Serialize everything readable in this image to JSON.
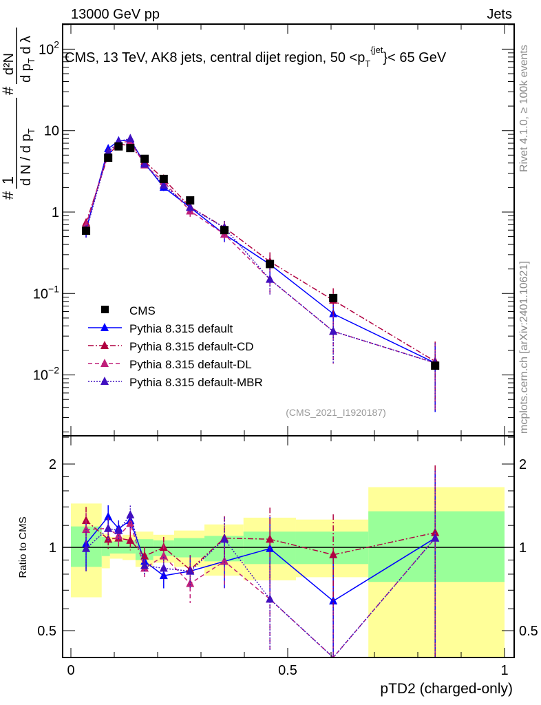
{
  "header": {
    "left": "13000 GeV pp",
    "right": "Jets"
  },
  "side_labels": {
    "rivet": "Rivet 4.1.0, ≥ 100k events",
    "mcplots": "mcplots.cern.ch [arXiv:2401.10621]"
  },
  "analysis_id": "(CMS_2021_I1920187)",
  "chart_data": {
    "type": "scatter",
    "title": {
      "main": "CMS, 13 TeV, AK8 jets, central dijet region, 50 <p",
      "sub": "T",
      "sup": "{jet",
      "tail": "}< 65 GeV"
    },
    "xlabel": "pTD2 (charged-only)",
    "ylabel": {
      "hash1": "#",
      "num1": "1",
      "den1": "d N / d p",
      "den1_sub": "T",
      "hash2": "#",
      "num2": "d²N",
      "den2": "d p",
      "den2_sub": "T",
      "den2_tail": " d λ"
    },
    "ratio_ylabel": "Ratio to CMS",
    "xlim": [
      -0.02,
      1.02
    ],
    "ylim_main": [
      0.0015,
      200
    ],
    "ylim_ratio": [
      0.4,
      2.53
    ],
    "yscale_main": "log",
    "x_ticks": [
      {
        "v": 0,
        "label": "0"
      },
      {
        "v": 0.5,
        "label": "0.5"
      },
      {
        "v": 1,
        "label": "1"
      }
    ],
    "y_ticks_main": [
      {
        "v": 100,
        "base": "10",
        "exp": "2"
      },
      {
        "v": 10,
        "base": "10",
        "exp": ""
      },
      {
        "v": 1,
        "base": "1",
        "exp": ""
      },
      {
        "v": 0.1,
        "base": "10",
        "exp": "−1"
      },
      {
        "v": 0.01,
        "base": "10",
        "exp": "−2"
      }
    ],
    "y_ticks_ratio": [
      {
        "v": 2,
        "label": "2"
      },
      {
        "v": 1,
        "label": "1"
      },
      {
        "v": 0.5,
        "label": "0.5"
      }
    ],
    "x": [
      0.035,
      0.086,
      0.11,
      0.137,
      0.17,
      0.214,
      0.275,
      0.354,
      0.459,
      0.605,
      0.84
    ],
    "bin_edges": [
      0,
      0.071,
      0.09,
      0.119,
      0.149,
      0.19,
      0.238,
      0.308,
      0.398,
      0.519,
      0.686,
      1.0
    ],
    "data": {
      "name": "CMS",
      "values": [
        0.59,
        4.65,
        6.4,
        6.1,
        4.5,
        2.55,
        1.39,
        0.6,
        0.23,
        0.088,
        0.013
      ],
      "color": "#000000"
    },
    "band_1sigma": {
      "color": "#99ff99",
      "lo": [
        0.85,
        0.93,
        0.95,
        0.95,
        0.9,
        0.93,
        0.92,
        0.89,
        0.87,
        0.87,
        0.75
      ],
      "hi": [
        1.19,
        1.09,
        1.05,
        1.06,
        1.07,
        1.06,
        1.08,
        1.1,
        1.14,
        1.14,
        1.35
      ]
    },
    "band_2sigma": {
      "color": "#ffff99",
      "lo": [
        0.66,
        0.84,
        0.91,
        0.9,
        0.85,
        0.88,
        0.85,
        0.79,
        0.76,
        0.78,
        0.37
      ],
      "hi": [
        1.44,
        1.12,
        1.09,
        1.11,
        1.14,
        1.11,
        1.15,
        1.21,
        1.28,
        1.26,
        1.65
      ]
    },
    "series": [
      {
        "name": "Pythia 8.315 default",
        "color": "#0000ff",
        "style": "solid",
        "ratio": [
          1.03,
          1.29,
          1.17,
          1.25,
          0.89,
          0.79,
          0.82,
          0.89,
          0.99,
          0.64,
          1.08
        ],
        "rel_err": [
          0.2,
          0.1,
          0.07,
          0.08,
          0.08,
          0.1,
          0.12,
          0.2,
          0.3,
          0.5,
          0.75
        ]
      },
      {
        "name": "Pythia 8.315 default-CD",
        "color": "#b00040",
        "style": "dashdot",
        "ratio": [
          1.25,
          1.07,
          1.08,
          1.06,
          0.93,
          1.0,
          0.83,
          1.08,
          1.07,
          0.94,
          1.13
        ],
        "rel_err": [
          0.12,
          0.09,
          0.07,
          0.08,
          0.08,
          0.09,
          0.13,
          0.2,
          0.3,
          0.4,
          0.75
        ]
      },
      {
        "name": "Pythia 8.315 default-DL",
        "color": "#c0207a",
        "style": "dashed",
        "ratio": [
          1.16,
          1.17,
          1.1,
          1.22,
          0.84,
          0.93,
          0.74,
          0.89,
          0.65,
          0.39,
          1.08
        ],
        "rel_err": [
          0.15,
          0.1,
          0.08,
          0.08,
          0.08,
          0.1,
          0.15,
          0.2,
          0.35,
          0.6,
          0.75
        ]
      },
      {
        "name": "Pythia 8.315 default-MBR",
        "color": "#4010c0",
        "style": "dotted",
        "ratio": [
          0.99,
          1.17,
          1.15,
          1.31,
          0.86,
          0.84,
          0.82,
          1.07,
          0.65,
          0.39,
          1.08
        ],
        "rel_err": [
          0.18,
          0.1,
          0.08,
          0.08,
          0.08,
          0.1,
          0.13,
          0.2,
          0.35,
          0.6,
          0.75
        ]
      }
    ],
    "legend": {
      "placement": "lower-left"
    }
  }
}
